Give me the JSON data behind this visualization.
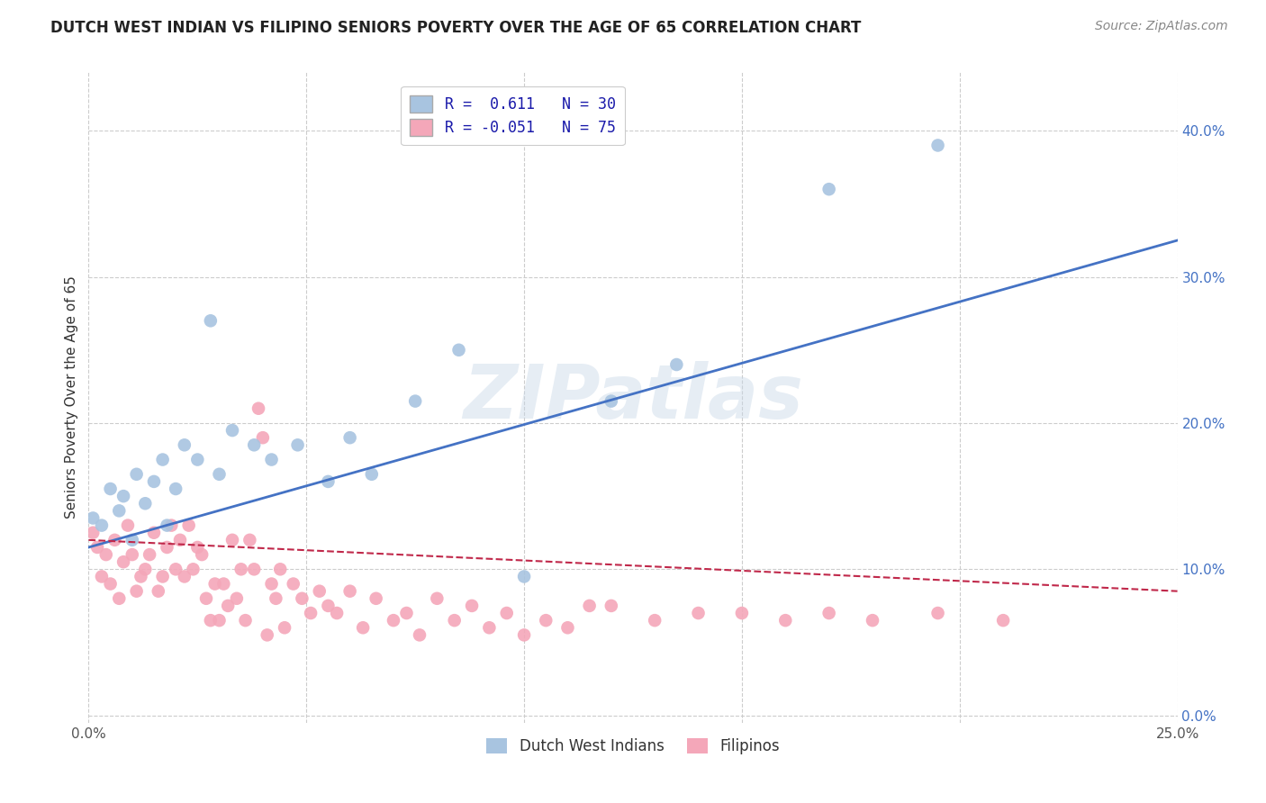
{
  "title": "DUTCH WEST INDIAN VS FILIPINO SENIORS POVERTY OVER THE AGE OF 65 CORRELATION CHART",
  "source": "Source: ZipAtlas.com",
  "ylabel": "Seniors Poverty Over the Age of 65",
  "xmin": 0.0,
  "xmax": 0.25,
  "ymin": -0.005,
  "ymax": 0.44,
  "ytick_labels": [
    "0.0%",
    "10.0%",
    "20.0%",
    "30.0%",
    "40.0%"
  ],
  "ytick_values": [
    0.0,
    0.1,
    0.2,
    0.3,
    0.4
  ],
  "xtick_values": [
    0.0,
    0.05,
    0.1,
    0.15,
    0.2,
    0.25
  ],
  "legend_labels": [
    "Dutch West Indians",
    "Filipinos"
  ],
  "legend_R": [
    "R =  0.611",
    "R = -0.051"
  ],
  "legend_N": [
    "N = 30",
    "N = 75"
  ],
  "dutch_color": "#a8c4e0",
  "filipino_color": "#f4a7b9",
  "dutch_line_color": "#4472c4",
  "filipino_line_color": "#c0284a",
  "background_color": "#ffffff",
  "watermark": "ZIPatlas",
  "dutch_x": [
    0.001,
    0.003,
    0.005,
    0.007,
    0.008,
    0.01,
    0.011,
    0.013,
    0.015,
    0.017,
    0.018,
    0.02,
    0.022,
    0.025,
    0.028,
    0.03,
    0.033,
    0.038,
    0.042,
    0.048,
    0.055,
    0.06,
    0.065,
    0.075,
    0.085,
    0.1,
    0.12,
    0.135,
    0.17,
    0.195
  ],
  "dutch_y": [
    0.135,
    0.13,
    0.155,
    0.14,
    0.15,
    0.12,
    0.165,
    0.145,
    0.16,
    0.175,
    0.13,
    0.155,
    0.185,
    0.175,
    0.27,
    0.165,
    0.195,
    0.185,
    0.175,
    0.185,
    0.16,
    0.19,
    0.165,
    0.215,
    0.25,
    0.095,
    0.215,
    0.24,
    0.36,
    0.39
  ],
  "filipino_x": [
    0.001,
    0.002,
    0.003,
    0.004,
    0.005,
    0.006,
    0.007,
    0.008,
    0.009,
    0.01,
    0.011,
    0.012,
    0.013,
    0.014,
    0.015,
    0.016,
    0.017,
    0.018,
    0.019,
    0.02,
    0.021,
    0.022,
    0.023,
    0.024,
    0.025,
    0.026,
    0.027,
    0.028,
    0.029,
    0.03,
    0.031,
    0.032,
    0.033,
    0.034,
    0.035,
    0.036,
    0.037,
    0.038,
    0.039,
    0.04,
    0.041,
    0.042,
    0.043,
    0.044,
    0.045,
    0.047,
    0.049,
    0.051,
    0.053,
    0.055,
    0.057,
    0.06,
    0.063,
    0.066,
    0.07,
    0.073,
    0.076,
    0.08,
    0.084,
    0.088,
    0.092,
    0.096,
    0.1,
    0.105,
    0.11,
    0.115,
    0.12,
    0.13,
    0.14,
    0.15,
    0.16,
    0.17,
    0.18,
    0.195,
    0.21
  ],
  "filipino_y": [
    0.125,
    0.115,
    0.095,
    0.11,
    0.09,
    0.12,
    0.08,
    0.105,
    0.13,
    0.11,
    0.085,
    0.095,
    0.1,
    0.11,
    0.125,
    0.085,
    0.095,
    0.115,
    0.13,
    0.1,
    0.12,
    0.095,
    0.13,
    0.1,
    0.115,
    0.11,
    0.08,
    0.065,
    0.09,
    0.065,
    0.09,
    0.075,
    0.12,
    0.08,
    0.1,
    0.065,
    0.12,
    0.1,
    0.21,
    0.19,
    0.055,
    0.09,
    0.08,
    0.1,
    0.06,
    0.09,
    0.08,
    0.07,
    0.085,
    0.075,
    0.07,
    0.085,
    0.06,
    0.08,
    0.065,
    0.07,
    0.055,
    0.08,
    0.065,
    0.075,
    0.06,
    0.07,
    0.055,
    0.065,
    0.06,
    0.075,
    0.075,
    0.065,
    0.07,
    0.07,
    0.065,
    0.07,
    0.065,
    0.07,
    0.065
  ],
  "dutch_line_x": [
    0.0,
    0.25
  ],
  "dutch_line_y": [
    0.115,
    0.325
  ],
  "filipino_line_x": [
    0.0,
    0.25
  ],
  "filipino_line_y": [
    0.12,
    0.085
  ]
}
